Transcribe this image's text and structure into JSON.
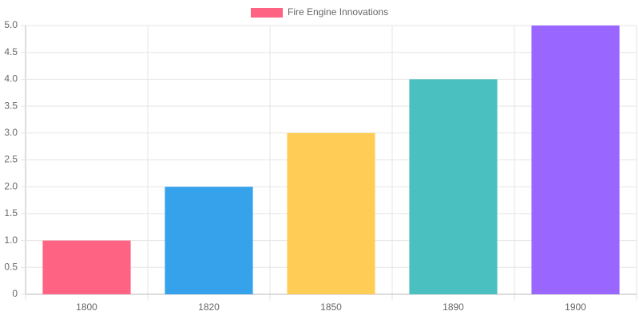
{
  "chart_data": {
    "type": "bar",
    "categories": [
      "1800",
      "1820",
      "1850",
      "1890",
      "1900"
    ],
    "series": [
      {
        "name": "Fire Engine Innovations",
        "colors": [
          "#ff6384",
          "#36a2eb",
          "#ffcd56",
          "#4bc0c0",
          "#9966ff"
        ],
        "values": [
          1,
          2,
          3,
          4,
          5
        ]
      }
    ],
    "ylim": [
      0,
      5
    ],
    "yticks": [
      0,
      0.5,
      {
        "value": 1,
        "label": "1.0"
      },
      1.5,
      {
        "value": 2,
        "label": "2.0"
      },
      2.5,
      {
        "value": 3,
        "label": "3.0"
      },
      3.5,
      {
        "value": 4,
        "label": "4.0"
      },
      4.5,
      {
        "value": 5,
        "label": "5.0"
      }
    ],
    "grid": true
  }
}
